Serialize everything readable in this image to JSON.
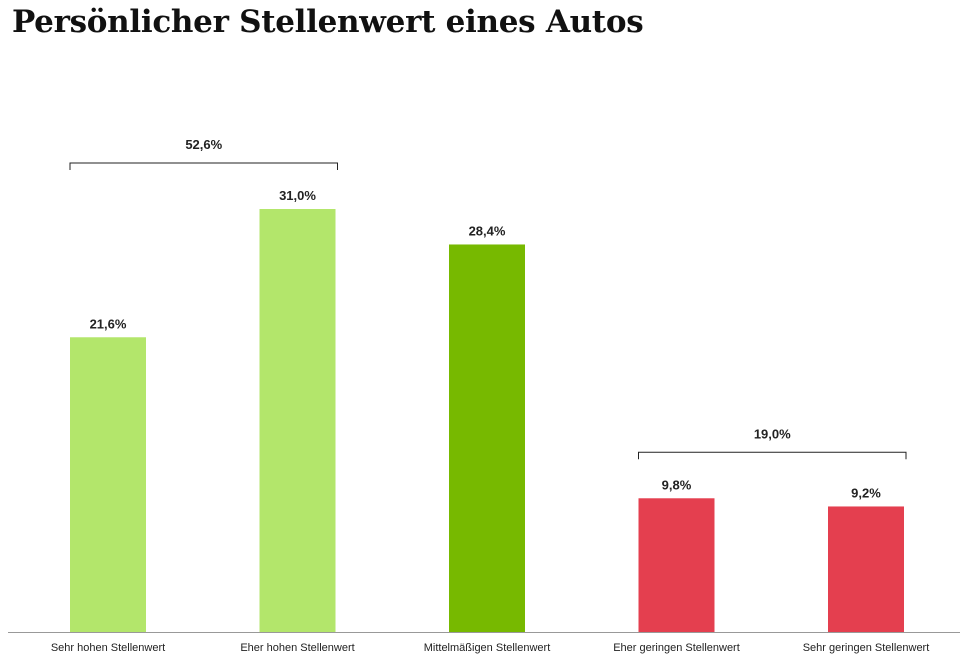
{
  "title": "Persönlicher Stellenwert eines Autos",
  "chart_data": {
    "type": "bar",
    "title": "Persönlicher Stellenwert eines Autos",
    "categories": [
      "Sehr hohen Stellenwert",
      "Eher hohen Stellenwert",
      "Mittelmäßigen Stellenwert",
      "Eher geringen Stellenwert",
      "Sehr geringen Stellenwert"
    ],
    "values": [
      21.6,
      31.0,
      28.4,
      9.8,
      9.2
    ],
    "data_labels": [
      "21,6%",
      "31,0%",
      "28,4%",
      "9,8%",
      "9,2%"
    ],
    "colors": [
      "#b3e66b",
      "#b3e66b",
      "#77b900",
      "#e43f4f",
      "#e43f4f"
    ],
    "unit": "%",
    "ylim": [
      0,
      31
    ],
    "grid": false,
    "brackets": [
      {
        "from": 0,
        "to": 1,
        "label": "52,6%"
      },
      {
        "from": 3,
        "to": 4,
        "label": "19,0%"
      }
    ]
  }
}
